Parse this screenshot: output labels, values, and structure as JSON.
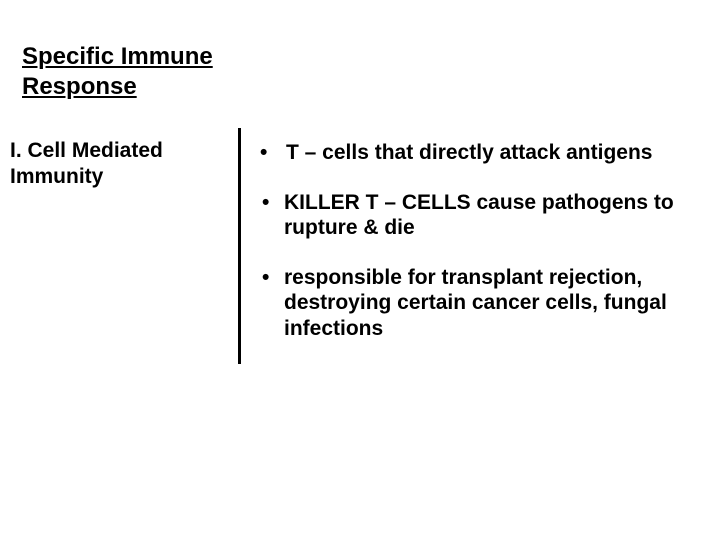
{
  "slide": {
    "title": "Specific Immune\nResponse",
    "subheading": "I. Cell Mediated\nImmunity",
    "bullets": [
      "T – cells that directly attack antigens",
      "KILLER T – CELLS  cause pathogens to rupture & die",
      "responsible for transplant rejection, destroying certain cancer cells, fungal infections"
    ]
  },
  "style": {
    "background_color": "#ffffff",
    "text_color": "#000000",
    "title_fontsize": 24,
    "subheading_fontsize": 21,
    "bullet_fontsize": 21,
    "font_weight": 700,
    "divider_color": "#000000",
    "divider_width": 3
  }
}
